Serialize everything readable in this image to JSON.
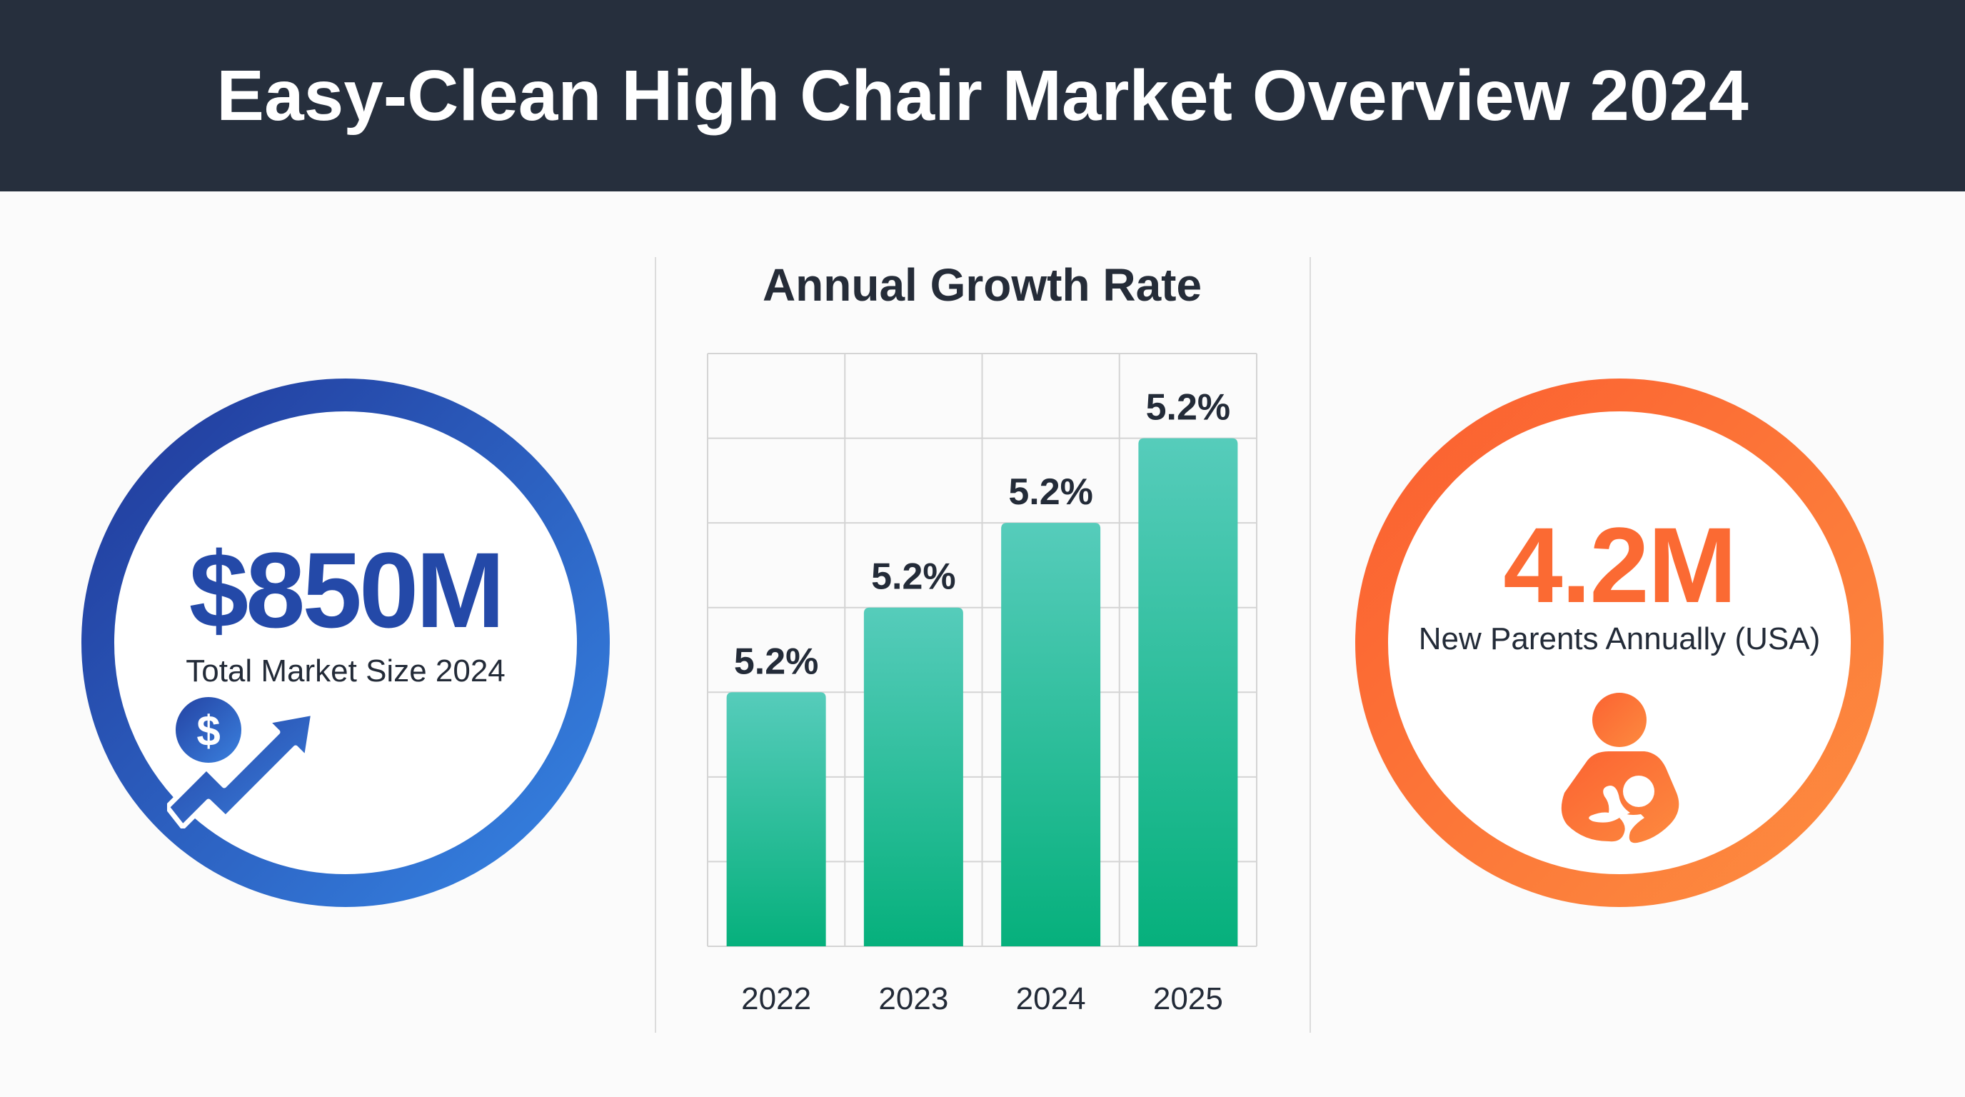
{
  "header": {
    "title": "Easy-Clean High Chair Market Overview 2024"
  },
  "kpis": {
    "market_size": {
      "value": "$850M",
      "caption": "Total Market Size 2024",
      "icon": "money-growth-arrow-icon",
      "color_start": "#21399a",
      "color_end": "#3684e3"
    },
    "new_parents": {
      "value": "4.2M",
      "caption": "New Parents Annually (USA)",
      "icon": "parent-holding-baby-icon",
      "color_start": "#fb5f30",
      "color_end": "#fd8d40"
    }
  },
  "chart_data": {
    "type": "bar",
    "title": "Annual Growth Rate",
    "categories": [
      "2022",
      "2023",
      "2024",
      "2025"
    ],
    "data_labels": [
      "5.2%",
      "5.2%",
      "5.2%",
      "5.2%"
    ],
    "values": [
      3,
      4,
      5,
      6
    ],
    "value_scale_note": "bar heights in gridline units (no numeric y-axis shown); all bars labeled 5.2%",
    "ylim": [
      0,
      7
    ],
    "xlabel": "",
    "ylabel": "",
    "grid": true,
    "legend": "none",
    "bar_color_top": "#56ccbb",
    "bar_color_bottom": "#06b07c"
  }
}
